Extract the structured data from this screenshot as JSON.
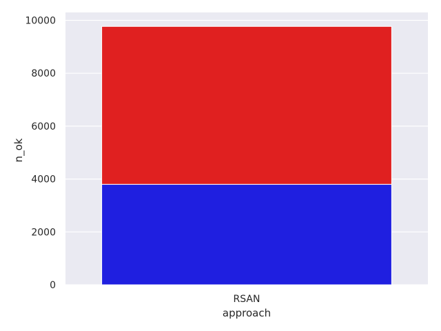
{
  "chart_data": {
    "type": "bar",
    "stacked": true,
    "categories": [
      "RSAN"
    ],
    "series": [
      {
        "values": [
          3800
        ],
        "color": "#1f1fe0"
      },
      {
        "values": [
          5970
        ],
        "color": "#e02020"
      }
    ],
    "xlabel": "approach",
    "ylabel": "n_ok",
    "ylim": [
      0,
      10300
    ],
    "yticks": [
      0,
      2000,
      4000,
      6000,
      8000,
      10000
    ],
    "grid": true,
    "background": "#eaeaf2",
    "legend": "none"
  }
}
